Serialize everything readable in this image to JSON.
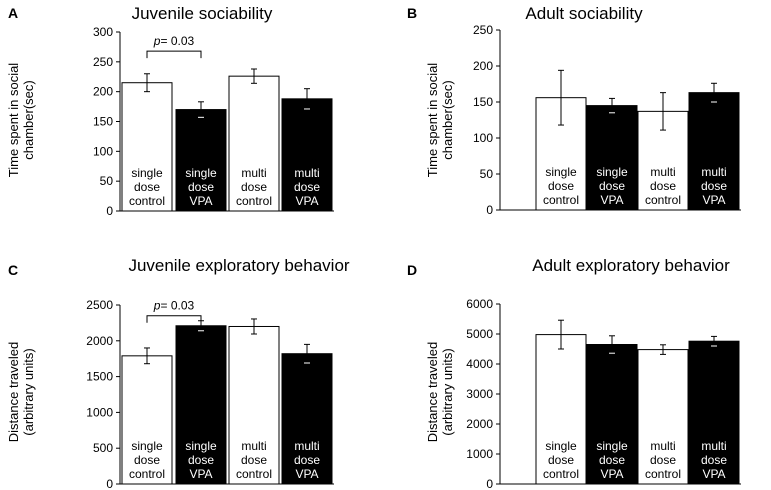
{
  "chart_data": [
    {
      "panel": "A",
      "type": "bar",
      "title": "Juvenile sociability",
      "ylabel": "Time spent in social chamber(sec)",
      "ylabel_lines": [
        "Time spent in social",
        "chamber(sec)"
      ],
      "ylim": [
        0,
        300
      ],
      "yticks": [
        0,
        50,
        100,
        150,
        200,
        250,
        300
      ],
      "categories": [
        "single dose control",
        "single dose VPA",
        "multi dose control",
        "multi dose VPA"
      ],
      "category_lines": [
        [
          "single",
          "dose",
          "control"
        ],
        [
          "single",
          "dose",
          "VPA"
        ],
        [
          "multi",
          "dose",
          "control"
        ],
        [
          "multi",
          "dose",
          "VPA"
        ]
      ],
      "values": [
        215,
        170,
        226,
        188
      ],
      "errors": [
        15,
        13,
        12,
        17
      ],
      "bar_colors": [
        "#ffffff",
        "#000000",
        "#ffffff",
        "#000000"
      ],
      "annotation": {
        "label_p": "p",
        "label_rest": "= 0.03",
        "between": [
          0,
          1
        ],
        "y": 268
      }
    },
    {
      "panel": "B",
      "type": "bar",
      "title": "Adult sociability",
      "ylabel": "Time spent in social chamber(sec)",
      "ylabel_lines": [
        "Time spent in social",
        "chamber(sec)"
      ],
      "ylim": [
        0,
        250
      ],
      "yticks": [
        0,
        50,
        100,
        150,
        200,
        250
      ],
      "categories": [
        "single dose control",
        "single dose VPA",
        "multi dose control",
        "multi dose VPA"
      ],
      "category_lines": [
        [
          "single",
          "dose",
          "control"
        ],
        [
          "single",
          "dose",
          "VPA"
        ],
        [
          "multi",
          "dose",
          "control"
        ],
        [
          "multi",
          "dose",
          "VPA"
        ]
      ],
      "values": [
        156,
        145,
        137,
        163
      ],
      "errors": [
        38,
        10,
        26,
        13
      ],
      "bar_colors": [
        "#ffffff",
        "#000000",
        "#ffffff",
        "#000000"
      ],
      "annotation": null
    },
    {
      "panel": "C",
      "type": "bar",
      "title": "Juvenile exploratory behavior",
      "ylabel": "Distance traveled (arbitrary units)",
      "ylabel_lines": [
        "Distance traveled",
        "(arbitrary units)"
      ],
      "ylim": [
        0,
        2500
      ],
      "yticks": [
        0,
        500,
        1000,
        1500,
        2000,
        2500
      ],
      "categories": [
        "single dose control",
        "single dose VPA",
        "multi dose control",
        "multi dose VPA"
      ],
      "category_lines": [
        [
          "single",
          "dose",
          "control"
        ],
        [
          "single",
          "dose",
          "VPA"
        ],
        [
          "multi",
          "dose",
          "control"
        ],
        [
          "multi",
          "dose",
          "VPA"
        ]
      ],
      "values": [
        1790,
        2210,
        2200,
        1820
      ],
      "errors": [
        110,
        70,
        105,
        130
      ],
      "bar_colors": [
        "#ffffff",
        "#000000",
        "#ffffff",
        "#000000"
      ],
      "annotation": {
        "label_p": "p",
        "label_rest": "= 0.03",
        "between": [
          0,
          1
        ],
        "y": 2350
      }
    },
    {
      "panel": "D",
      "type": "bar",
      "title": "Adult exploratory behavior",
      "ylabel": "Distance traveled (arbitrary units)",
      "ylabel_lines": [
        "Distance traveled",
        "(arbitrary units)"
      ],
      "ylim": [
        0,
        6000
      ],
      "yticks": [
        0,
        1000,
        2000,
        3000,
        4000,
        5000,
        6000
      ],
      "categories": [
        "single dose control",
        "single dose VPA",
        "multi dose control",
        "multi dose VPA"
      ],
      "category_lines": [
        [
          "single",
          "dose",
          "control"
        ],
        [
          "single",
          "dose",
          "VPA"
        ],
        [
          "multi",
          "dose",
          "control"
        ],
        [
          "multi",
          "dose",
          "VPA"
        ]
      ],
      "values": [
        4980,
        4650,
        4480,
        4760
      ],
      "errors": [
        480,
        290,
        160,
        160
      ],
      "bar_colors": [
        "#ffffff",
        "#000000",
        "#ffffff",
        "#000000"
      ],
      "annotation": null
    }
  ]
}
